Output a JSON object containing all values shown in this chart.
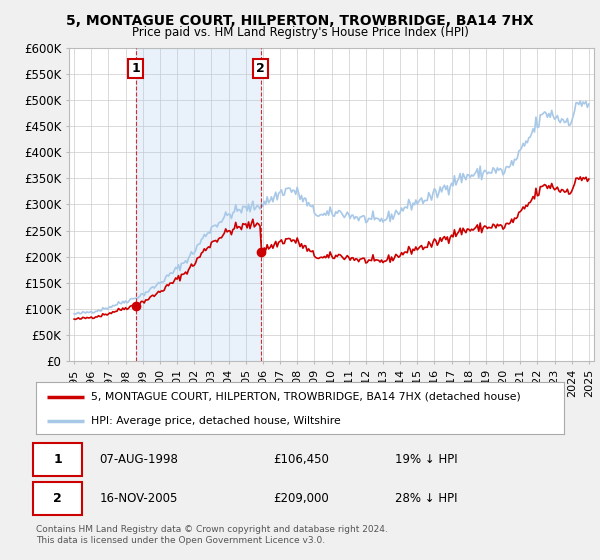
{
  "title1": "5, MONTAGUE COURT, HILPERTON, TROWBRIDGE, BA14 7HX",
  "title2": "Price paid vs. HM Land Registry's House Price Index (HPI)",
  "sale1_date": 1998.6,
  "sale1_price": 106450,
  "sale1_label": "1",
  "sale1_text": "07-AUG-1998",
  "sale1_amount": "£106,450",
  "sale1_hpi": "19% ↓ HPI",
  "sale2_date": 2005.88,
  "sale2_price": 209000,
  "sale2_label": "2",
  "sale2_text": "16-NOV-2005",
  "sale2_amount": "£209,000",
  "sale2_hpi": "28% ↓ HPI",
  "legend1": "5, MONTAGUE COURT, HILPERTON, TROWBRIDGE, BA14 7HX (detached house)",
  "legend2": "HPI: Average price, detached house, Wiltshire",
  "footer": "Contains HM Land Registry data © Crown copyright and database right 2024.\nThis data is licensed under the Open Government Licence v3.0.",
  "hpi_color": "#a8c8e8",
  "price_color": "#cc0000",
  "marker_box_color": "#cc0000",
  "shade_color": "#ddeeff",
  "ylim": [
    0,
    600000
  ],
  "yticks": [
    0,
    50000,
    100000,
    150000,
    200000,
    250000,
    300000,
    350000,
    400000,
    450000,
    500000,
    550000,
    600000
  ],
  "xlim_left": 1994.7,
  "xlim_right": 2025.3,
  "bg_color": "#f0f0f0",
  "plot_bg": "#ffffff"
}
